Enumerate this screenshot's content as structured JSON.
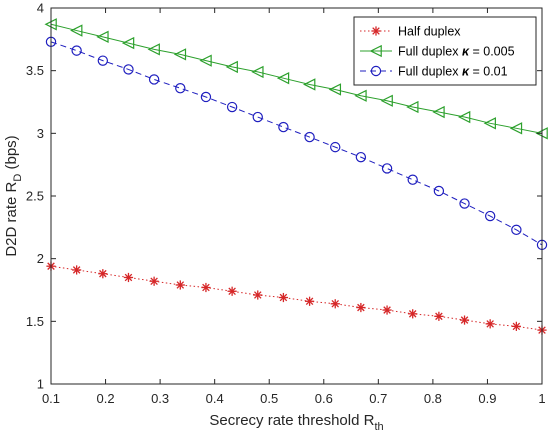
{
  "chart_data": {
    "type": "line",
    "xlabel": "Secrecy rate threshold R",
    "xlabel_sub": "th",
    "ylabel": "D2D rate R",
    "ylabel_sub": "D",
    "ylabel_suffix": " (bps)",
    "xlim": [
      0.1,
      1
    ],
    "ylim": [
      1,
      4
    ],
    "xticks": [
      "0.1",
      "0.2",
      "0.3",
      "0.4",
      "0.5",
      "0.6",
      "0.7",
      "0.8",
      "0.9",
      "1"
    ],
    "yticks": [
      "1",
      "1.5",
      "2",
      "2.5",
      "3",
      "3.5",
      "4"
    ],
    "grid": false,
    "legend_position": "top-right",
    "x": [
      0.1,
      0.147,
      0.195,
      0.242,
      0.289,
      0.337,
      0.384,
      0.432,
      0.479,
      0.526,
      0.574,
      0.621,
      0.668,
      0.716,
      0.763,
      0.811,
      0.858,
      0.905,
      0.953,
      1.0
    ],
    "series": [
      {
        "name": "Half duplex",
        "color": "#d62728",
        "marker": "asterisk",
        "line_style": "dotted",
        "values": [
          1.94,
          1.91,
          1.88,
          1.85,
          1.82,
          1.79,
          1.77,
          1.74,
          1.71,
          1.69,
          1.66,
          1.64,
          1.61,
          1.59,
          1.56,
          1.54,
          1.51,
          1.48,
          1.46,
          1.43
        ]
      },
      {
        "name_prefix": "Full duplex ",
        "name_symbol": "κ",
        "name_suffix": " = 0.005",
        "color": "#2ca02c",
        "marker": "left-triangle",
        "line_style": "solid",
        "values": [
          3.87,
          3.82,
          3.77,
          3.72,
          3.67,
          3.63,
          3.58,
          3.53,
          3.49,
          3.44,
          3.39,
          3.35,
          3.3,
          3.26,
          3.21,
          3.17,
          3.13,
          3.08,
          3.04,
          3.0
        ]
      },
      {
        "name_prefix": "Full duplex ",
        "name_symbol": "κ",
        "name_suffix": " = 0.01",
        "color": "#1f1fbf",
        "marker": "circle",
        "line_style": "dashed",
        "values": [
          3.73,
          3.66,
          3.58,
          3.51,
          3.43,
          3.36,
          3.29,
          3.21,
          3.13,
          3.05,
          2.97,
          2.89,
          2.81,
          2.72,
          2.63,
          2.54,
          2.44,
          2.34,
          2.23,
          2.11
        ]
      }
    ]
  }
}
